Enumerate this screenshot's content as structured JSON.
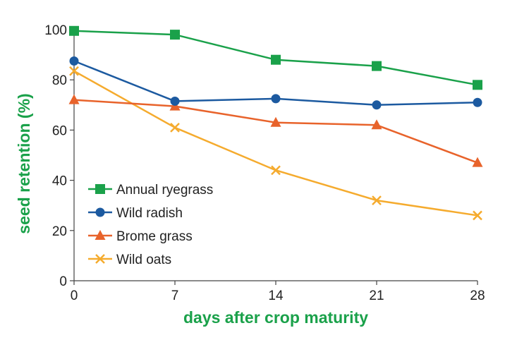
{
  "chart_data": {
    "type": "line",
    "title": "",
    "xlabel": "days after crop maturity",
    "ylabel": "seed retention (%)",
    "label_color": "#1aa14a",
    "x": [
      0,
      7,
      14,
      21,
      28
    ],
    "x_tick_labels": [
      "0",
      "7",
      "14",
      "21",
      "28"
    ],
    "xlim": [
      0,
      28
    ],
    "ylim": [
      0,
      100
    ],
    "y_ticks": [
      0,
      20,
      40,
      60,
      80,
      100
    ],
    "y_tick_labels": [
      "0",
      "20",
      "40",
      "60",
      "80",
      "100"
    ],
    "grid": false,
    "legend_position": "bottom-left",
    "series": [
      {
        "name": "Annual ryegrass",
        "marker": "square",
        "color": "#1aa14a",
        "values": [
          99.5,
          98,
          88,
          85.5,
          78
        ]
      },
      {
        "name": "Wild radish",
        "marker": "circle",
        "color": "#1c5aa0",
        "values": [
          87.5,
          71.5,
          72.5,
          70,
          71
        ]
      },
      {
        "name": "Brome grass",
        "marker": "triangle",
        "color": "#e8632b",
        "values": [
          72,
          69.5,
          63,
          62,
          47
        ]
      },
      {
        "name": "Wild oats",
        "marker": "x",
        "color": "#f5ab2e",
        "values": [
          83.5,
          61,
          44,
          32,
          26
        ]
      }
    ]
  }
}
